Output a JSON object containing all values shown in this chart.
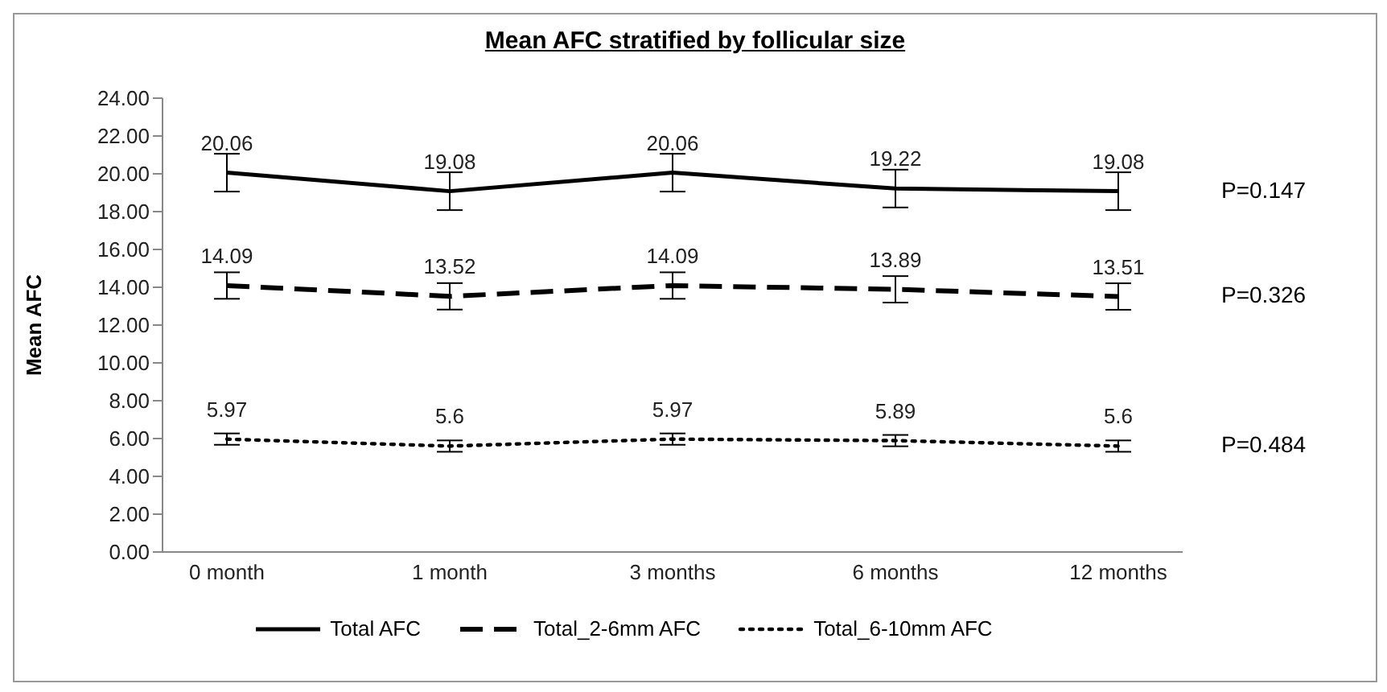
{
  "chart_data": {
    "type": "line",
    "title": "Mean AFC stratified by follicular size",
    "ylabel": "Mean AFC",
    "categories": [
      "0 month",
      "1 month",
      "3 months",
      "6 months",
      "12 months"
    ],
    "series": [
      {
        "name": "Total AFC",
        "color": "#000000",
        "line_style": "solid",
        "values": [
          20.06,
          19.08,
          20.06,
          19.22,
          19.08
        ],
        "errors": [
          1.0,
          1.0,
          1.0,
          1.0,
          1.0
        ]
      },
      {
        "name": "Total_2-6mm AFC",
        "color": "#000000",
        "line_style": "dashed",
        "values": [
          14.09,
          13.52,
          14.09,
          13.89,
          13.51
        ],
        "errors": [
          0.7,
          0.7,
          0.7,
          0.7,
          0.7
        ]
      },
      {
        "name": "Total_6-10mm AFC",
        "color": "#000000",
        "line_style": "dotted",
        "values": [
          5.97,
          5.6,
          5.97,
          5.89,
          5.6
        ],
        "errors": [
          0.3,
          0.3,
          0.3,
          0.3,
          0.3
        ]
      }
    ],
    "annotations": [
      "P=0.147",
      "P=0.326",
      "P=0.484"
    ],
    "ylim": [
      0,
      24
    ],
    "yticks": [
      {
        "value": 0,
        "label": "0.00"
      },
      {
        "value": 2,
        "label": "2.00"
      },
      {
        "value": 4,
        "label": "4.00"
      },
      {
        "value": 6,
        "label": "6.00"
      },
      {
        "value": 8,
        "label": "8.00"
      },
      {
        "value": 10,
        "label": "10.00"
      },
      {
        "value": 12,
        "label": "12.00"
      },
      {
        "value": 14,
        "label": "14.00"
      },
      {
        "value": 16,
        "label": "16.00"
      },
      {
        "value": 18,
        "label": "18.00"
      },
      {
        "value": 20,
        "label": "20.00"
      },
      {
        "value": 22,
        "label": "22.00"
      },
      {
        "value": 24,
        "label": "24.00"
      }
    ],
    "data_labels": true,
    "marker": "none",
    "grid": false,
    "legend": "bottom"
  }
}
